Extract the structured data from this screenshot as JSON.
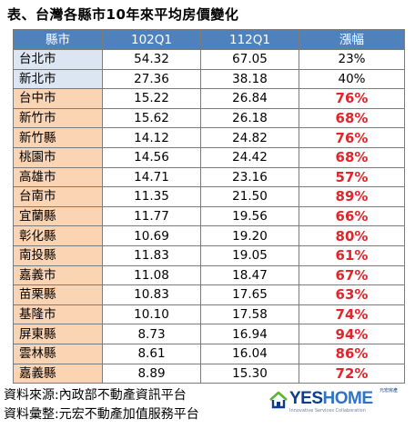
{
  "title": "表、台灣各縣市10年來平均房價變化",
  "table": {
    "headers": [
      "縣市",
      "102Q1",
      "112Q1",
      "漲幅"
    ],
    "rows": [
      {
        "city": "台北市",
        "q102": "54.32",
        "q112": "67.05",
        "rise": "23%",
        "group": "blue"
      },
      {
        "city": "新北市",
        "q102": "27.36",
        "q112": "38.18",
        "rise": "40%",
        "group": "blue"
      },
      {
        "city": "台中市",
        "q102": "15.22",
        "q112": "26.84",
        "rise": "76%",
        "group": "orange"
      },
      {
        "city": "新竹市",
        "q102": "15.62",
        "q112": "26.18",
        "rise": "68%",
        "group": "orange"
      },
      {
        "city": "新竹縣",
        "q102": "14.12",
        "q112": "24.82",
        "rise": "76%",
        "group": "orange"
      },
      {
        "city": "桃園市",
        "q102": "14.56",
        "q112": "24.42",
        "rise": "68%",
        "group": "orange"
      },
      {
        "city": "高雄市",
        "q102": "14.71",
        "q112": "23.16",
        "rise": "57%",
        "group": "orange"
      },
      {
        "city": "台南市",
        "q102": "11.35",
        "q112": "21.50",
        "rise": "89%",
        "group": "orange"
      },
      {
        "city": "宜蘭縣",
        "q102": "11.77",
        "q112": "19.56",
        "rise": "66%",
        "group": "orange"
      },
      {
        "city": "彰化縣",
        "q102": "10.69",
        "q112": "19.20",
        "rise": "80%",
        "group": "orange"
      },
      {
        "city": "南投縣",
        "q102": "11.83",
        "q112": "19.05",
        "rise": "61%",
        "group": "orange"
      },
      {
        "city": "嘉義市",
        "q102": "11.08",
        "q112": "18.47",
        "rise": "67%",
        "group": "orange"
      },
      {
        "city": "苗栗縣",
        "q102": "10.83",
        "q112": "17.65",
        "rise": "63%",
        "group": "orange"
      },
      {
        "city": "基隆市",
        "q102": "10.10",
        "q112": "17.58",
        "rise": "74%",
        "group": "orange"
      },
      {
        "city": "屏東縣",
        "q102": "8.73",
        "q112": "16.94",
        "rise": "94%",
        "group": "orange"
      },
      {
        "city": "雲林縣",
        "q102": "8.61",
        "q112": "16.04",
        "rise": "86%",
        "group": "orange"
      },
      {
        "city": "嘉義縣",
        "q102": "8.89",
        "q112": "15.30",
        "rise": "72%",
        "group": "orange"
      }
    ]
  },
  "footer": {
    "source": "資料來源:內政部不動產資訊平台",
    "compiled": "資料彙整:元宏不動產加值服務平台"
  },
  "logo": {
    "yes": "YES",
    "home": "HOME",
    "cn": "元宏房產",
    "tagline": "Innovative Services Collaboration",
    "icon": "house-icon"
  },
  "colors": {
    "header_bg": "#4f81bd",
    "blue_row": "#dce6f2",
    "orange_row": "#fbd4b4",
    "rise_red": "#e0252b",
    "logo_navy": "#0b3d8c",
    "logo_green": "#5cb531"
  }
}
